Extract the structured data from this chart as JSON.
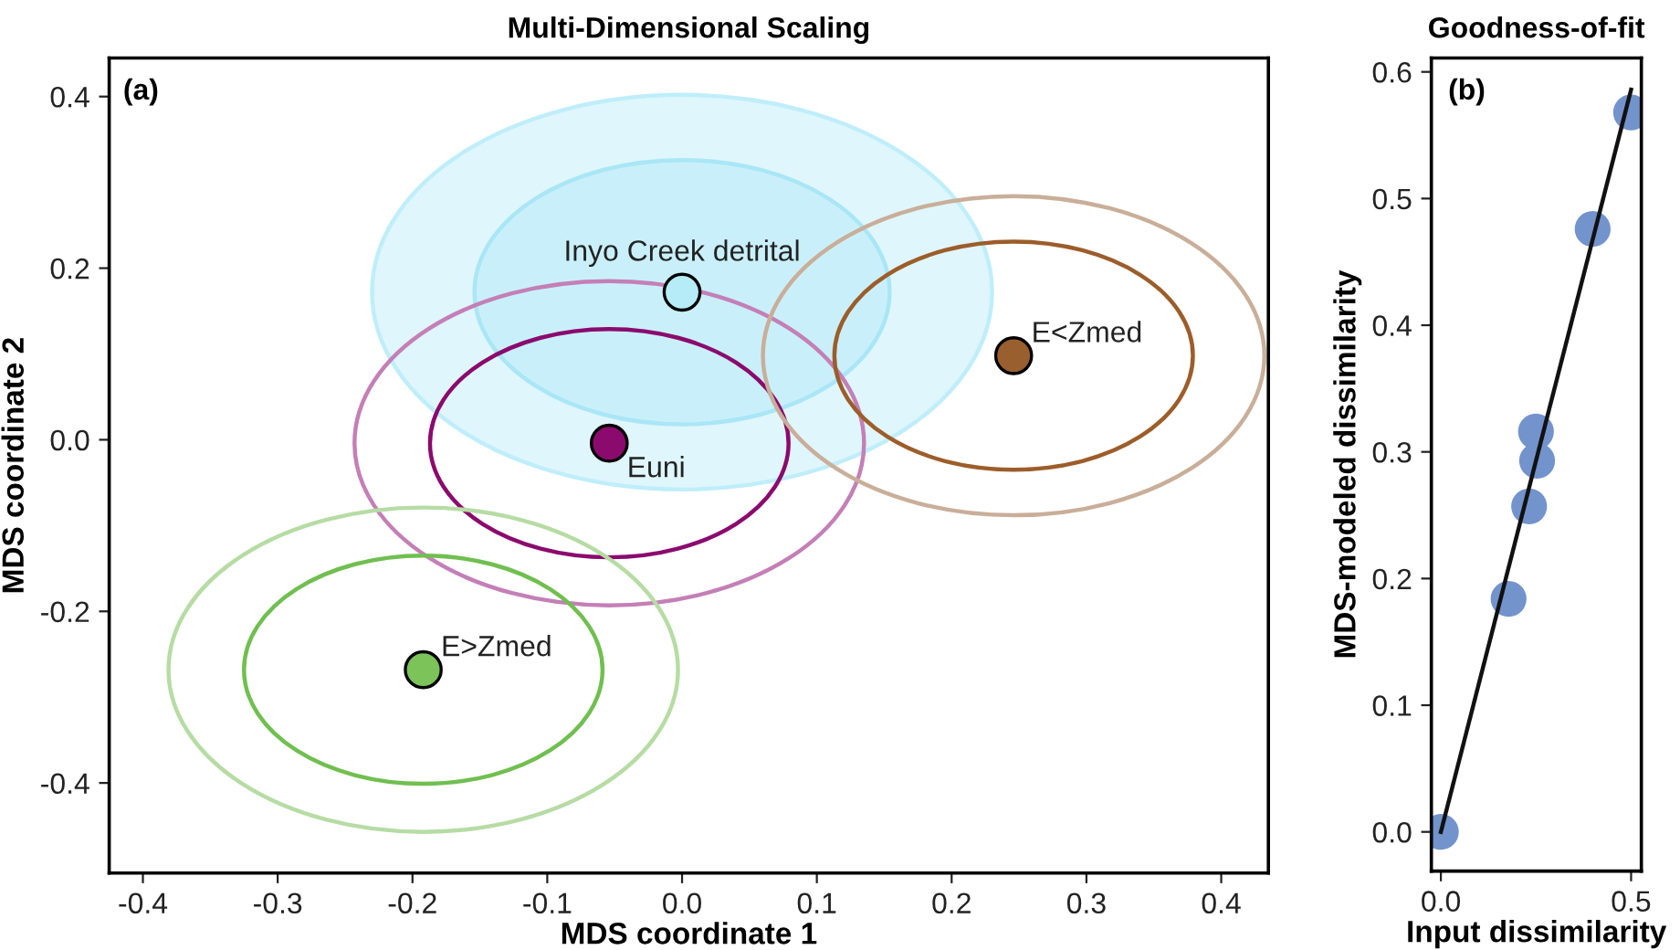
{
  "chart_data": [
    {
      "type": "scatter",
      "title": "Multi-Dimensional Scaling",
      "xlabel": "MDS coordinate 1",
      "ylabel": "MDS coordinate 2",
      "annotations": [
        "(a)"
      ],
      "grid": false,
      "xlim": [
        -0.425,
        0.435
      ],
      "ylim": [
        -0.505,
        0.445
      ],
      "xticks": [
        {
          "value": -0.4,
          "label": "-0.4"
        },
        {
          "value": -0.3,
          "label": "-0.3"
        },
        {
          "value": -0.2,
          "label": "-0.2"
        },
        {
          "value": -0.1,
          "label": "-0.1"
        },
        {
          "value": 0.0,
          "label": "0.0"
        },
        0.1,
        0.2,
        0.3,
        0.4
      ],
      "yticks": [
        {
          "value": -0.4,
          "label": "-0.4"
        },
        {
          "value": -0.2,
          "label": "-0.2"
        },
        {
          "value": 0.0,
          "label": "0.0"
        },
        0.2,
        0.4
      ],
      "series": [
        {
          "marker": "circle",
          "name": "Inyo Creek detrital",
          "color": "#b5ecf7",
          "x": [
            0.0
          ],
          "values": [
            0.172
          ]
        },
        {
          "marker": "circle",
          "name": "Euni",
          "color": "#8b0a6e",
          "x": [
            -0.054
          ],
          "values": [
            -0.004
          ]
        },
        {
          "marker": "circle",
          "name": "E<Zmed",
          "color": "#9a5f2e",
          "x": [
            0.246
          ],
          "values": [
            0.098
          ]
        },
        {
          "marker": "circle",
          "name": "E>Zmed",
          "color": "#7cc35a",
          "x": [
            -0.192
          ],
          "values": [
            -0.268
          ]
        }
      ]
    },
    {
      "type": "scatter",
      "title": "Goodness-of-fit",
      "xlabel": "Input dissimilarity",
      "ylabel": "MDS-modeled dissimilarity",
      "annotations": [
        "(b)"
      ],
      "grid": false,
      "xlim": [
        -0.025,
        0.527
      ],
      "ylim": [
        -0.031,
        0.611
      ],
      "xticks": [
        {
          "value": 0.0,
          "label": "0.0"
        },
        0.5
      ],
      "yticks": [
        {
          "value": 0.0,
          "label": "0.0"
        },
        0.1,
        0.2,
        0.3,
        0.4,
        0.5,
        0.6
      ],
      "series": [
        {
          "marker": "circle",
          "color": "#7393cc",
          "x": [
            0,
            0.178,
            0.232,
            0.25,
            0.253,
            0.399,
            0.5
          ],
          "values": [
            0,
            0.184,
            0.257,
            0.316,
            0.293,
            0.476,
            0.568
          ]
        },
        {
          "type": "line",
          "marker": "none",
          "color": "#111111",
          "x": [
            0,
            0.5
          ],
          "values": [
            0,
            0.586
          ]
        }
      ]
    }
  ]
}
